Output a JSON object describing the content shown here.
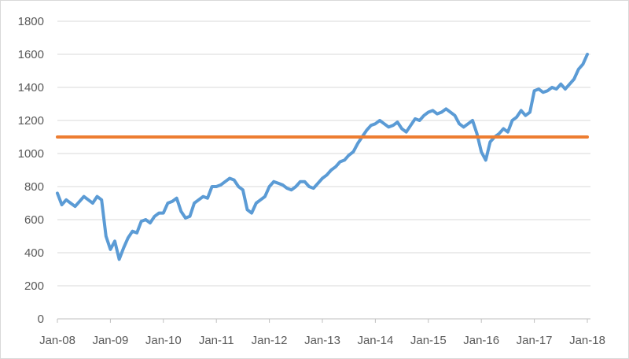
{
  "chart_data": {
    "type": "line",
    "title": "",
    "xlabel": "",
    "ylabel": "",
    "ylim": [
      0,
      1800
    ],
    "yticks": [
      0,
      200,
      400,
      600,
      800,
      1000,
      1200,
      1400,
      1600,
      1800
    ],
    "xtick_labels": [
      "Jan-08",
      "Jan-09",
      "Jan-10",
      "Jan-11",
      "Jan-12",
      "Jan-13",
      "Jan-14",
      "Jan-15",
      "Jan-16",
      "Jan-17",
      "Jan-18"
    ],
    "grid": "horizontal",
    "legend": "none",
    "series": [
      {
        "color": "#5b9bd5",
        "x": [
          "2008-01",
          "2008-02",
          "2008-03",
          "2008-04",
          "2008-05",
          "2008-06",
          "2008-07",
          "2008-08",
          "2008-09",
          "2008-10",
          "2008-11",
          "2008-12",
          "2009-01",
          "2009-02",
          "2009-03",
          "2009-04",
          "2009-05",
          "2009-06",
          "2009-07",
          "2009-08",
          "2009-09",
          "2009-10",
          "2009-11",
          "2009-12",
          "2010-01",
          "2010-02",
          "2010-03",
          "2010-04",
          "2010-05",
          "2010-06",
          "2010-07",
          "2010-08",
          "2010-09",
          "2010-10",
          "2010-11",
          "2010-12",
          "2011-01",
          "2011-02",
          "2011-03",
          "2011-04",
          "2011-05",
          "2011-06",
          "2011-07",
          "2011-08",
          "2011-09",
          "2011-10",
          "2011-11",
          "2011-12",
          "2012-01",
          "2012-02",
          "2012-03",
          "2012-04",
          "2012-05",
          "2012-06",
          "2012-07",
          "2012-08",
          "2012-09",
          "2012-10",
          "2012-11",
          "2012-12",
          "2013-01",
          "2013-02",
          "2013-03",
          "2013-04",
          "2013-05",
          "2013-06",
          "2013-07",
          "2013-08",
          "2013-09",
          "2013-10",
          "2013-11",
          "2013-12",
          "2014-01",
          "2014-02",
          "2014-03",
          "2014-04",
          "2014-05",
          "2014-06",
          "2014-07",
          "2014-08",
          "2014-09",
          "2014-10",
          "2014-11",
          "2014-12",
          "2015-01",
          "2015-02",
          "2015-03",
          "2015-04",
          "2015-05",
          "2015-06",
          "2015-07",
          "2015-08",
          "2015-09",
          "2015-10",
          "2015-11",
          "2015-12",
          "2016-01",
          "2016-02",
          "2016-03",
          "2016-04",
          "2016-05",
          "2016-06",
          "2016-07",
          "2016-08",
          "2016-09",
          "2016-10",
          "2016-11",
          "2016-12",
          "2017-01",
          "2017-02",
          "2017-03",
          "2017-04",
          "2017-05",
          "2017-06",
          "2017-07",
          "2017-08",
          "2017-09",
          "2017-10",
          "2017-11",
          "2017-12",
          "2018-01"
        ],
        "values": [
          760,
          690,
          720,
          700,
          680,
          710,
          740,
          720,
          700,
          740,
          720,
          500,
          420,
          470,
          360,
          430,
          490,
          530,
          520,
          590,
          600,
          580,
          620,
          640,
          640,
          700,
          710,
          730,
          650,
          610,
          620,
          700,
          720,
          740,
          730,
          800,
          800,
          810,
          830,
          850,
          840,
          800,
          780,
          660,
          640,
          700,
          720,
          740,
          800,
          830,
          820,
          810,
          790,
          780,
          800,
          830,
          830,
          800,
          790,
          820,
          850,
          870,
          900,
          920,
          950,
          960,
          990,
          1010,
          1060,
          1100,
          1140,
          1170,
          1180,
          1200,
          1180,
          1160,
          1170,
          1190,
          1150,
          1130,
          1170,
          1210,
          1200,
          1230,
          1250,
          1260,
          1240,
          1250,
          1270,
          1250,
          1230,
          1180,
          1160,
          1180,
          1200,
          1120,
          1010,
          960,
          1070,
          1100,
          1120,
          1150,
          1130,
          1200,
          1220,
          1260,
          1230,
          1250,
          1380,
          1390,
          1370,
          1380,
          1400,
          1390,
          1420,
          1390,
          1420,
          1450,
          1510,
          1540,
          1600
        ]
      },
      {
        "color": "#ed7d31",
        "x": [
          "2008-01",
          "2018-01"
        ],
        "values": [
          1100,
          1100
        ]
      }
    ]
  }
}
